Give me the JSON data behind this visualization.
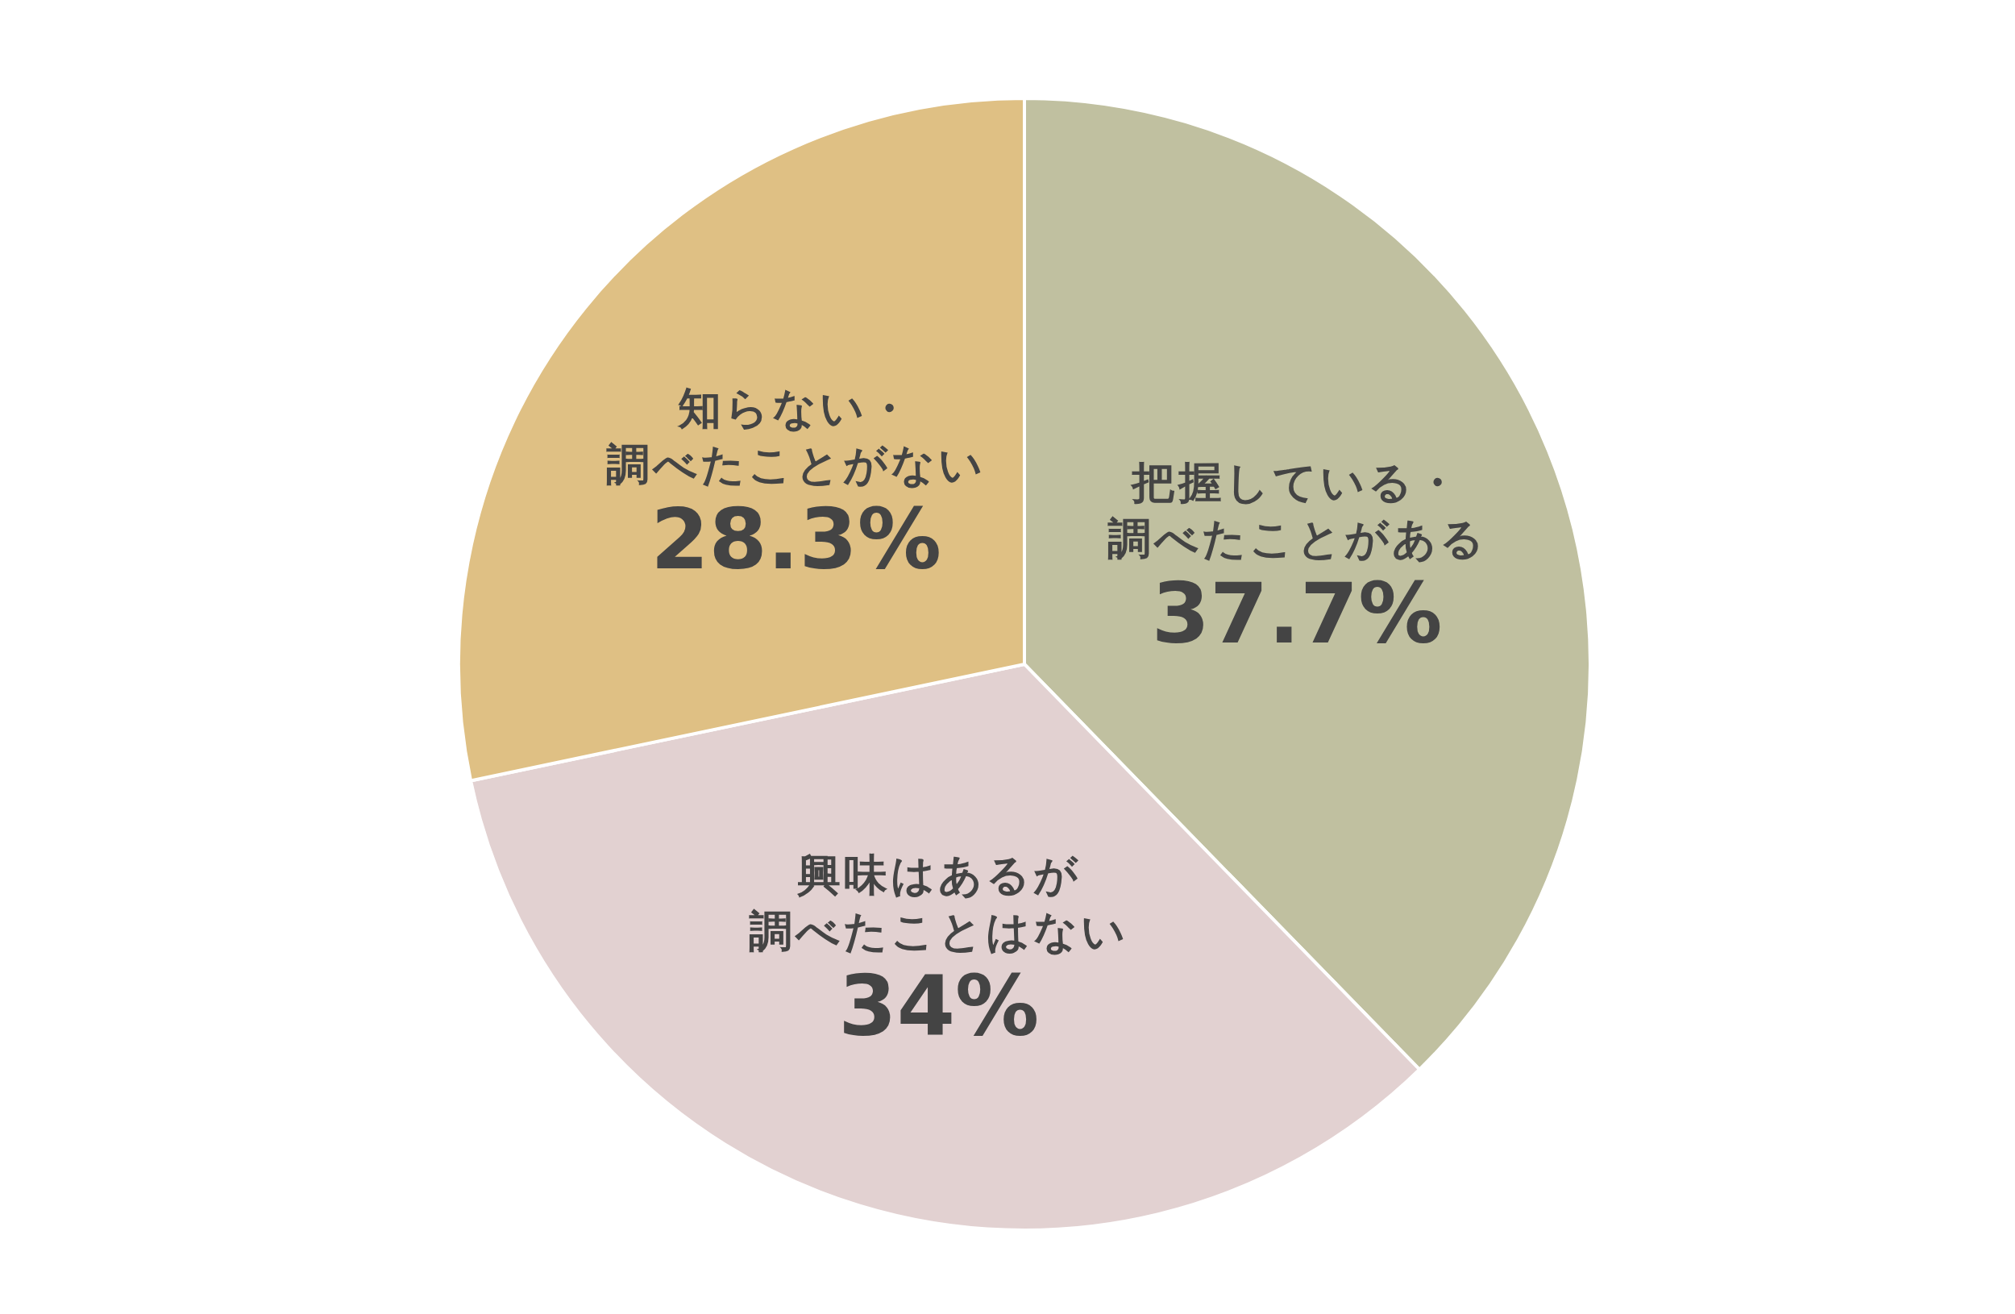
{
  "chart_data": {
    "type": "pie",
    "categories": [
      "把握している・調べたことがある",
      "興味はあるが調べたことはない",
      "知らない・調べたことがない"
    ],
    "values": [
      37.7,
      34,
      28.3
    ],
    "colors": [
      "#c0c0a0",
      "#e2d1d1",
      "#dfc084"
    ],
    "value_labels": [
      "37.7%",
      "34%",
      "28.3%"
    ]
  }
}
